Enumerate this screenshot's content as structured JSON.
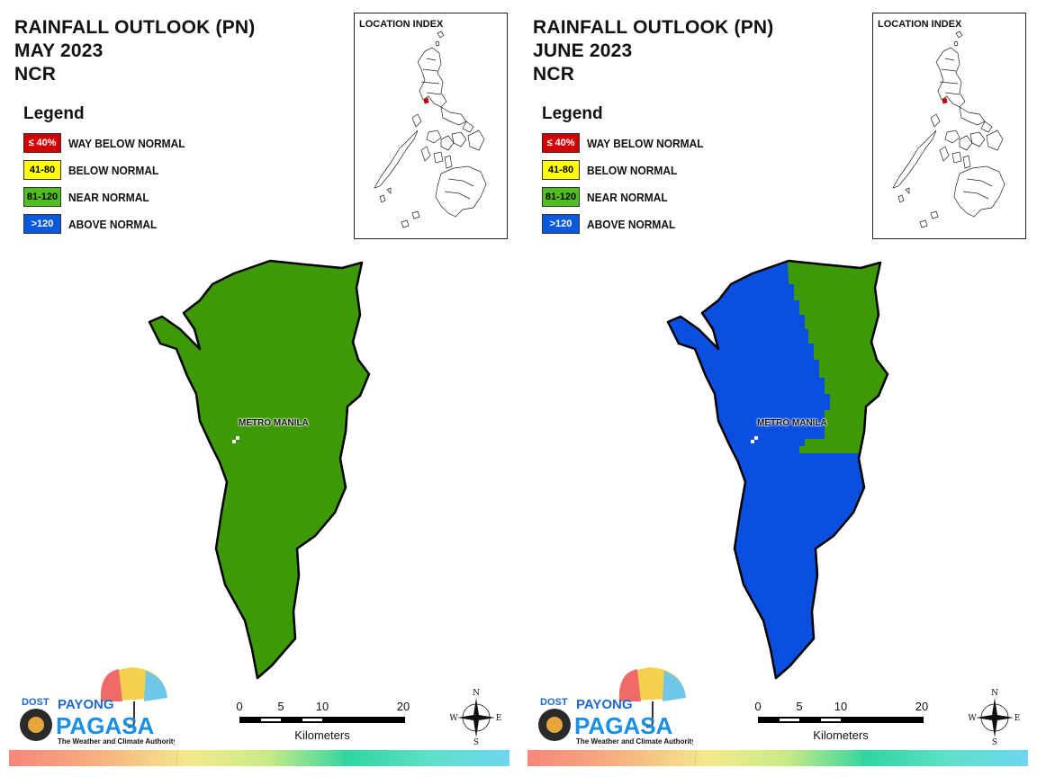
{
  "panels": [
    {
      "id": "may",
      "title_line1": "RAINFALL OUTLOOK (PN)",
      "title_line2": "MAY 2023",
      "title_line3": "NCR",
      "inset_title": "LOCATION INDEX",
      "place_label": "METRO MANILA",
      "map_fill": "near-normal"
    },
    {
      "id": "june",
      "title_line1": "RAINFALL OUTLOOK (PN)",
      "title_line2": "JUNE 2023",
      "title_line3": "NCR",
      "inset_title": "LOCATION INDEX",
      "place_label": "METRO MANILA",
      "map_fill": "above-normal-west / near-normal-northeast"
    }
  ],
  "legend": {
    "title": "Legend",
    "items": [
      {
        "range": "≤ 40%",
        "label": "WAY BELOW NORMAL",
        "color": "#d40000",
        "text_color": "#ffffff"
      },
      {
        "range": "41-80",
        "label": "BELOW NORMAL",
        "color": "#ffff00",
        "text_color": "#000000"
      },
      {
        "range": "81-120",
        "label": "NEAR NORMAL",
        "color": "#4fbf1f",
        "text_color": "#000000"
      },
      {
        "range": ">120",
        "label": "ABOVE NORMAL",
        "color": "#0a5ae0",
        "text_color": "#ffffff"
      }
    ]
  },
  "colors": {
    "near_normal_fill": "#3d9a06",
    "above_normal_fill": "#0a4fe0"
  },
  "scalebar": {
    "ticks": [
      "0",
      "5",
      "10",
      "20"
    ],
    "unit": "Kilometers"
  },
  "compass": {
    "n": "N",
    "s": "S",
    "e": "E",
    "w": "W"
  },
  "logo": {
    "dost": "DOST",
    "payong": "PAYONG",
    "pagasa": "PAGASA",
    "tagline": "The Weather and Climate Authority"
  }
}
